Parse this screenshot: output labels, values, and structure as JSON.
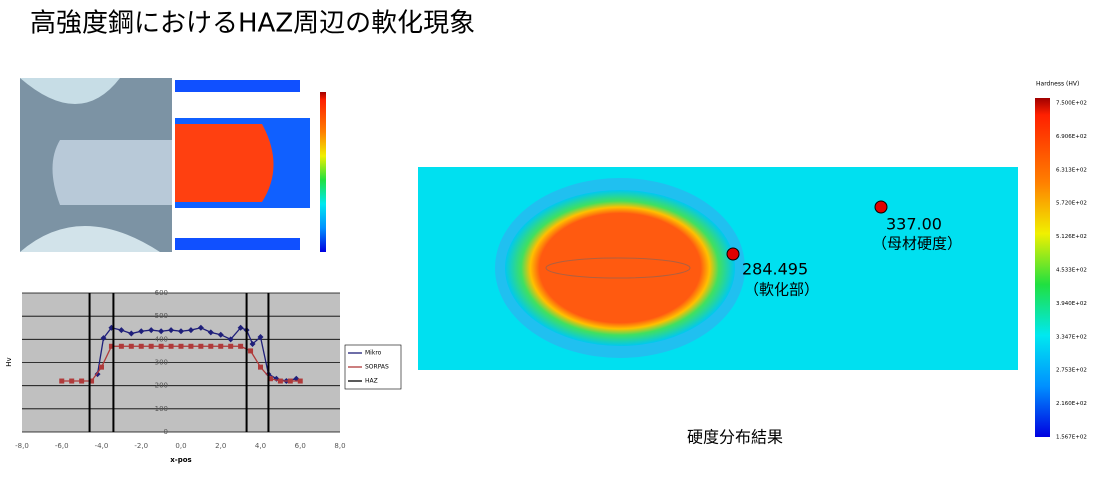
{
  "title": "高強度鋼におけるHAZ周辺の軟化現象",
  "chart_data": {
    "type": "line",
    "x_label": "x-pos",
    "y_label": "Hv",
    "xlim": [
      -8,
      8
    ],
    "ylim": [
      0,
      600
    ],
    "xticks": [
      {
        "value": -8,
        "label": "-8,0"
      },
      {
        "value": -6,
        "label": "-6,0"
      },
      {
        "value": -4,
        "label": "-4,0"
      },
      {
        "value": -2,
        "label": "-2,0"
      },
      {
        "value": 0,
        "label": "0,0"
      },
      {
        "value": 2,
        "label": "2,0"
      },
      {
        "value": 4,
        "label": "4,0"
      },
      {
        "value": 6,
        "label": "6,0"
      },
      {
        "value": 8,
        "label": "8,0"
      }
    ],
    "yticks": [
      0,
      100,
      200,
      300,
      400,
      500,
      600
    ],
    "grid": true,
    "series": [
      {
        "name": "Mikro",
        "color": "#1f1f7a",
        "x": [
          -4.2,
          -3.9,
          -3.5,
          -3.0,
          -2.5,
          -2.0,
          -1.5,
          -1.0,
          -0.5,
          0,
          0.5,
          1.0,
          1.5,
          2.0,
          2.5,
          3.0,
          3.3,
          3.6,
          4.0,
          4.4,
          4.8,
          5.3,
          5.8
        ],
        "values": [
          250,
          405,
          450,
          440,
          425,
          435,
          440,
          435,
          440,
          435,
          440,
          450,
          430,
          420,
          400,
          450,
          440,
          380,
          410,
          250,
          230,
          220,
          230
        ]
      },
      {
        "name": "SORPAS",
        "color": "#b03a3a",
        "x": [
          -6,
          -5.5,
          -5,
          -4.5,
          -4,
          -3.5,
          -3,
          -2.5,
          -2,
          -1.5,
          -1,
          -0.5,
          0,
          0.5,
          1,
          1.5,
          2,
          2.5,
          3,
          3.5,
          4,
          4.5,
          5,
          5.5,
          6
        ],
        "values": [
          220,
          220,
          220,
          220,
          280,
          370,
          370,
          370,
          370,
          370,
          370,
          370,
          370,
          370,
          370,
          370,
          370,
          370,
          370,
          350,
          280,
          230,
          220,
          220,
          220
        ]
      },
      {
        "name": "HAZ",
        "color": "#000000",
        "x": [
          -4.6,
          -3.4,
          3.3,
          4.4
        ]
      }
    ]
  },
  "contour": {
    "caption": "硬度分布結果",
    "points": [
      {
        "value": "337.00",
        "note": "（母材硬度）"
      },
      {
        "value": "284.495",
        "note": "（軟化部）"
      }
    ],
    "colorbar": {
      "title": "Hardness (HV)",
      "labels": [
        "7.500E+02",
        "6.906E+02",
        "6.313E+02",
        "5.720E+02",
        "5.126E+02",
        "4.533E+02",
        "3.940E+02",
        "3.347E+02",
        "2.753E+02",
        "2.160E+02",
        "1.567E+02"
      ]
    }
  }
}
